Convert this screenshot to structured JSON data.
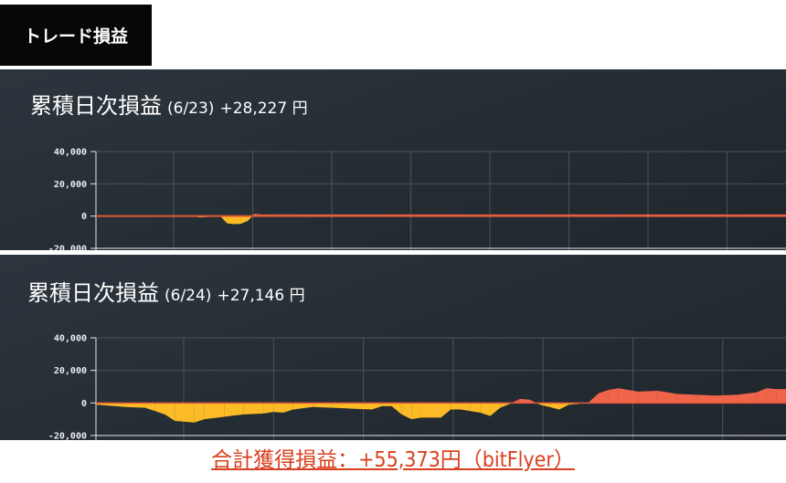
{
  "header": {
    "label": "トレード損益"
  },
  "colors": {
    "positive": "#f0654a",
    "negative": "#fbbb26",
    "zero_line": "#e2583d",
    "grid": "#4a535b",
    "axis": "#e8e8e8"
  },
  "chart_data": [
    {
      "type": "area",
      "title": "累積日次損益",
      "date": "(6/23)",
      "total": "+28,227 円",
      "yticks": [
        "40,000",
        "20,000",
        "0",
        "-20,000"
      ],
      "ylim": [
        -20000,
        40000
      ],
      "grid": true,
      "x": [
        0,
        10,
        14,
        15,
        16,
        17,
        17.5,
        18,
        19,
        20,
        21,
        22,
        23,
        23.5,
        24,
        30,
        100
      ],
      "y": [
        0,
        0,
        0,
        -800,
        -600,
        300,
        500,
        0,
        -4500,
        -5000,
        -4800,
        -3000,
        1500,
        1200,
        1000,
        1000,
        1000
      ]
    },
    {
      "type": "area",
      "title": "累積日次損益",
      "date": "(6/24)",
      "total": "+27,146 円",
      "yticks": [
        "40,000",
        "20,000",
        "0",
        "-20,000"
      ],
      "ylim": [
        -20000,
        40000
      ],
      "grid": true,
      "x": [
        0,
        3,
        5,
        6,
        7,
        8,
        10,
        11,
        13,
        15,
        17,
        18,
        19,
        20,
        22,
        24,
        26,
        28,
        29,
        30,
        31,
        32,
        33,
        35,
        36,
        37,
        38,
        39,
        40,
        41,
        42,
        43,
        44,
        45,
        46,
        47,
        48,
        49,
        50,
        51,
        52,
        53,
        55,
        57,
        59,
        61,
        63,
        65,
        67,
        68,
        69,
        70
      ],
      "y": [
        -1000,
        -2500,
        -3000,
        -5000,
        -7000,
        -11000,
        -12000,
        -10000,
        -8500,
        -7000,
        -6500,
        -5500,
        -6000,
        -4000,
        -2500,
        -3000,
        -3500,
        -4000,
        -2000,
        -2000,
        -7000,
        -10000,
        -9000,
        -9000,
        -4000,
        -4000,
        -5000,
        -6000,
        -8000,
        -3000,
        -500,
        2500,
        2000,
        -1000,
        -2500,
        -4000,
        -1000,
        -500,
        500,
        6000,
        8000,
        9000,
        7000,
        7500,
        5500,
        5000,
        4500,
        5000,
        6500,
        9000,
        8500,
        8500
      ]
    }
  ],
  "footer": {
    "total": "合計獲得損益：+55,373円（bitFlyer）"
  }
}
